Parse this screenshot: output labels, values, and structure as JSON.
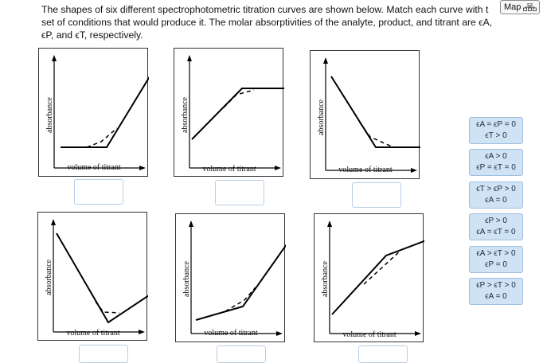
{
  "prompt": {
    "line1": "The shapes of six different spectrophotometric titration curves are shown below. Match each curve with t",
    "line2": "set of conditions that would produce it. The molar absorptivities of the analyte, product, and titrant are ϵA,",
    "line3": "ϵP, and ϵT, respectively."
  },
  "map_button": {
    "label": "Map",
    "icon": "sitemap-icon"
  },
  "axis_labels": {
    "x": "volume of titrant",
    "y": "absorbance"
  },
  "panels": [
    {
      "id": 1,
      "x_label": "volume of titrant",
      "y_label": "absorbance"
    },
    {
      "id": 2,
      "x_label": "volume of titrant",
      "y_label": "absorbance"
    },
    {
      "id": 3,
      "x_label": "volume of titrant",
      "y_label": "absorbance"
    },
    {
      "id": 4,
      "x_label": "volume of titrant",
      "y_label": "absorbance"
    },
    {
      "id": 5,
      "x_label": "volume of titrant",
      "y_label": "absorbance"
    },
    {
      "id": 6,
      "x_label": "volume of titrant",
      "y_label": "absorbance"
    }
  ],
  "answer_choices": [
    {
      "line1": "ϵA = ϵP = 0",
      "line2": "ϵT > 0"
    },
    {
      "line1": "ϵA > 0",
      "line2": "ϵP = ϵT = 0"
    },
    {
      "line1": "ϵT > ϵP > 0",
      "line2": "ϵA = 0"
    },
    {
      "line1": "ϵP > 0",
      "line2": "ϵA = ϵT = 0"
    },
    {
      "line1": "ϵA > ϵT > 0",
      "line2": "ϵP = 0"
    },
    {
      "line1": "ϵP > ϵT > 0",
      "line2": "ϵA = 0"
    }
  ]
}
